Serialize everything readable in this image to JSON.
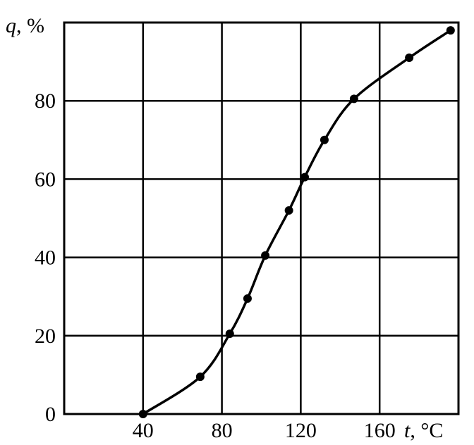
{
  "chart_data": {
    "type": "line",
    "title": "",
    "xlabel_symbol": "t",
    "xlabel_unit": "°C",
    "ylabel_symbol": "q",
    "ylabel_unit": "%",
    "xlim": [
      0,
      200
    ],
    "ylim": [
      0,
      100
    ],
    "x_ticks": [
      40,
      80,
      120,
      160
    ],
    "y_ticks": [
      0,
      20,
      40,
      60,
      80
    ],
    "grid": true,
    "series": [
      {
        "x": [
          40,
          69,
          84,
          93,
          102,
          114,
          122,
          132,
          147,
          175,
          196
        ],
        "y": [
          0,
          9.5,
          20.5,
          29.5,
          40.5,
          52,
          60.5,
          70,
          80.5,
          91,
          98
        ]
      }
    ]
  }
}
